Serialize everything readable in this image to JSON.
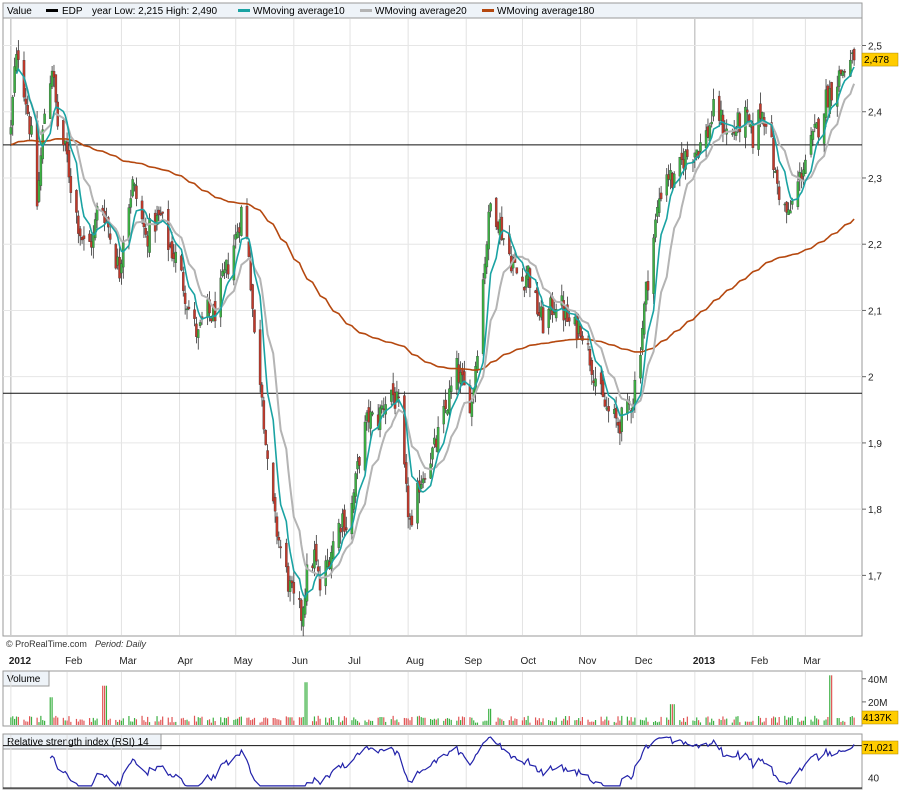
{
  "legend": {
    "value_label": "Value",
    "instrument": "EDP",
    "year_range": "year Low: 2,215 High: 2,490",
    "ma10_label": "WMoving average10",
    "ma20_label": "WMoving average20",
    "ma180_label": "WMoving average180"
  },
  "watermark": "© ProRealTime.com",
  "period_text": "Period: Daily",
  "colors": {
    "candle_up": "#3cb043",
    "candle_down": "#c0392b",
    "candle_wick": "#333333",
    "ma10": "#1aa3a3",
    "ma20": "#b4b4b4",
    "ma180": "#b5480f",
    "volume_up": "#3cb043",
    "volume_down": "#e05555",
    "rsi": "#2222aa",
    "last_badge": "#ffcc00"
  },
  "chart_data": [
    {
      "type": "candlestick",
      "title": "EDP",
      "period": "Daily",
      "ylim": [
        1.61,
        2.54
      ],
      "yticks": [
        "2,5",
        "2,4",
        "2,3",
        "2,2",
        "2,1",
        "2",
        "1,9",
        "1,8",
        "1,7"
      ],
      "ytick_values": [
        2.5,
        2.4,
        2.3,
        2.2,
        2.1,
        2.0,
        1.9,
        1.8,
        1.7
      ],
      "horizontal_lines": [
        2.35,
        1.975
      ],
      "last_value": 2.478,
      "last_label": "2,478",
      "x_labels": [
        "2012",
        "Feb",
        "Mar",
        "Apr",
        "May",
        "Jun",
        "Jul",
        "Aug",
        "Sep",
        "Oct",
        "Nov",
        "Dec",
        "2013",
        "Feb",
        "Mar"
      ],
      "x_bold": [
        "2012",
        "2013"
      ],
      "x_range": [
        "2012-01-01",
        "2013-03-28"
      ],
      "close_path": [
        [
          "2012-01-02",
          2.37
        ],
        [
          "2012-01-04",
          2.46
        ],
        [
          "2012-01-06",
          2.49
        ],
        [
          "2012-01-10",
          2.42
        ],
        [
          "2012-01-13",
          2.36
        ],
        [
          "2012-01-16",
          2.26
        ],
        [
          "2012-01-18",
          2.33
        ],
        [
          "2012-01-20",
          2.4
        ],
        [
          "2012-01-24",
          2.47
        ],
        [
          "2012-01-27",
          2.38
        ],
        [
          "2012-02-01",
          2.33
        ],
        [
          "2012-02-04",
          2.27
        ],
        [
          "2012-02-08",
          2.22
        ],
        [
          "2012-02-11",
          2.19
        ],
        [
          "2012-02-15",
          2.21
        ],
        [
          "2012-02-18",
          2.27
        ],
        [
          "2012-02-22",
          2.24
        ],
        [
          "2012-02-25",
          2.2
        ],
        [
          "2012-02-29",
          2.16
        ],
        [
          "2012-03-03",
          2.24
        ],
        [
          "2012-03-07",
          2.29
        ],
        [
          "2012-03-10",
          2.26
        ],
        [
          "2012-03-14",
          2.21
        ],
        [
          "2012-03-18",
          2.23
        ],
        [
          "2012-03-22",
          2.24
        ],
        [
          "2012-03-26",
          2.2
        ],
        [
          "2012-03-30",
          2.18
        ],
        [
          "2012-04-03",
          2.14
        ],
        [
          "2012-04-07",
          2.09
        ],
        [
          "2012-04-11",
          2.06
        ],
        [
          "2012-04-15",
          2.1
        ],
        [
          "2012-04-19",
          2.09
        ],
        [
          "2012-04-23",
          2.13
        ],
        [
          "2012-04-27",
          2.17
        ],
        [
          "2012-05-01",
          2.21
        ],
        [
          "2012-05-04",
          2.25
        ],
        [
          "2012-05-08",
          2.19
        ],
        [
          "2012-05-11",
          2.06
        ],
        [
          "2012-05-15",
          1.98
        ],
        [
          "2012-05-18",
          1.86
        ],
        [
          "2012-05-22",
          1.78
        ],
        [
          "2012-05-25",
          1.74
        ],
        [
          "2012-05-29",
          1.69
        ],
        [
          "2012-06-01",
          1.66
        ],
        [
          "2012-06-05",
          1.64
        ],
        [
          "2012-06-08",
          1.7
        ],
        [
          "2012-06-12",
          1.73
        ],
        [
          "2012-06-15",
          1.68
        ],
        [
          "2012-06-19",
          1.72
        ],
        [
          "2012-06-23",
          1.76
        ],
        [
          "2012-06-27",
          1.79
        ],
        [
          "2012-06-30",
          1.77
        ],
        [
          "2012-07-04",
          1.84
        ],
        [
          "2012-07-07",
          1.9
        ],
        [
          "2012-07-11",
          1.94
        ],
        [
          "2012-07-15",
          1.93
        ],
        [
          "2012-07-19",
          1.96
        ],
        [
          "2012-07-23",
          1.98
        ],
        [
          "2012-07-27",
          1.95
        ],
        [
          "2012-07-31",
          1.82
        ],
        [
          "2012-08-03",
          1.76
        ],
        [
          "2012-08-07",
          1.84
        ],
        [
          "2012-08-11",
          1.87
        ],
        [
          "2012-08-15",
          1.89
        ],
        [
          "2012-08-19",
          1.93
        ],
        [
          "2012-08-23",
          1.97
        ],
        [
          "2012-08-27",
          2.01
        ],
        [
          "2012-08-31",
          1.98
        ],
        [
          "2012-09-04",
          1.96
        ],
        [
          "2012-09-08",
          2.08
        ],
        [
          "2012-09-11",
          2.18
        ],
        [
          "2012-09-14",
          2.26
        ],
        [
          "2012-09-18",
          2.24
        ],
        [
          "2012-09-22",
          2.2
        ],
        [
          "2012-09-26",
          2.17
        ],
        [
          "2012-09-30",
          2.14
        ],
        [
          "2012-10-04",
          2.16
        ],
        [
          "2012-10-08",
          2.11
        ],
        [
          "2012-10-12",
          2.08
        ],
        [
          "2012-10-16",
          2.1
        ],
        [
          "2012-10-20",
          2.12
        ],
        [
          "2012-10-24",
          2.09
        ],
        [
          "2012-10-28",
          2.07
        ],
        [
          "2012-11-01",
          2.08
        ],
        [
          "2012-11-05",
          2.04
        ],
        [
          "2012-11-09",
          2.0
        ],
        [
          "2012-11-13",
          1.96
        ],
        [
          "2012-11-17",
          1.94
        ],
        [
          "2012-11-21",
          1.93
        ],
        [
          "2012-11-25",
          1.94
        ],
        [
          "2012-11-29",
          1.97
        ],
        [
          "2012-12-03",
          2.05
        ],
        [
          "2012-12-06",
          2.13
        ],
        [
          "2012-12-10",
          2.21
        ],
        [
          "2012-12-13",
          2.27
        ],
        [
          "2012-12-17",
          2.31
        ],
        [
          "2012-12-21",
          2.29
        ],
        [
          "2012-12-26",
          2.33
        ],
        [
          "2012-12-31",
          2.34
        ],
        [
          "2013-01-04",
          2.35
        ],
        [
          "2013-01-08",
          2.37
        ],
        [
          "2013-01-12",
          2.41
        ],
        [
          "2013-01-16",
          2.38
        ],
        [
          "2013-01-20",
          2.36
        ],
        [
          "2013-01-24",
          2.38
        ],
        [
          "2013-01-28",
          2.39
        ],
        [
          "2013-02-01",
          2.36
        ],
        [
          "2013-02-05",
          2.4
        ],
        [
          "2013-02-09",
          2.39
        ],
        [
          "2013-02-13",
          2.3
        ],
        [
          "2013-02-17",
          2.26
        ],
        [
          "2013-02-20",
          2.24
        ],
        [
          "2013-02-24",
          2.28
        ],
        [
          "2013-02-28",
          2.32
        ],
        [
          "2013-03-04",
          2.35
        ],
        [
          "2013-03-08",
          2.38
        ],
        [
          "2013-03-12",
          2.42
        ],
        [
          "2013-03-16",
          2.44
        ],
        [
          "2013-03-20",
          2.46
        ],
        [
          "2013-03-24",
          2.47
        ],
        [
          "2013-03-27",
          2.478
        ]
      ],
      "series": [
        {
          "name": "WMoving average10",
          "window": 10
        },
        {
          "name": "WMoving average20",
          "window": 20
        },
        {
          "name": "WMoving average180",
          "window": 180
        }
      ]
    },
    {
      "type": "bar",
      "title": "Volume",
      "yticks": [
        "40M",
        "20M"
      ],
      "ytick_values": [
        40000000,
        20000000
      ],
      "ylim": [
        0,
        45000000
      ],
      "last_label": "4137K",
      "last_value": 4137000,
      "spikes": [
        [
          "2012-01-23",
          24000000
        ],
        [
          "2012-02-21",
          34000000
        ],
        [
          "2012-06-08",
          37000000
        ],
        [
          "2012-09-14",
          14000000
        ],
        [
          "2012-12-20",
          18000000
        ],
        [
          "2013-03-15",
          43000000
        ]
      ]
    },
    {
      "type": "line",
      "title": "Relative strength index (RSI) 14",
      "ylim": [
        30,
        80
      ],
      "yticks": [
        "40"
      ],
      "ytick_values": [
        40
      ],
      "horizontal_lines": [
        70,
        30
      ],
      "last_value": 71.021,
      "last_label": "71,021"
    }
  ]
}
